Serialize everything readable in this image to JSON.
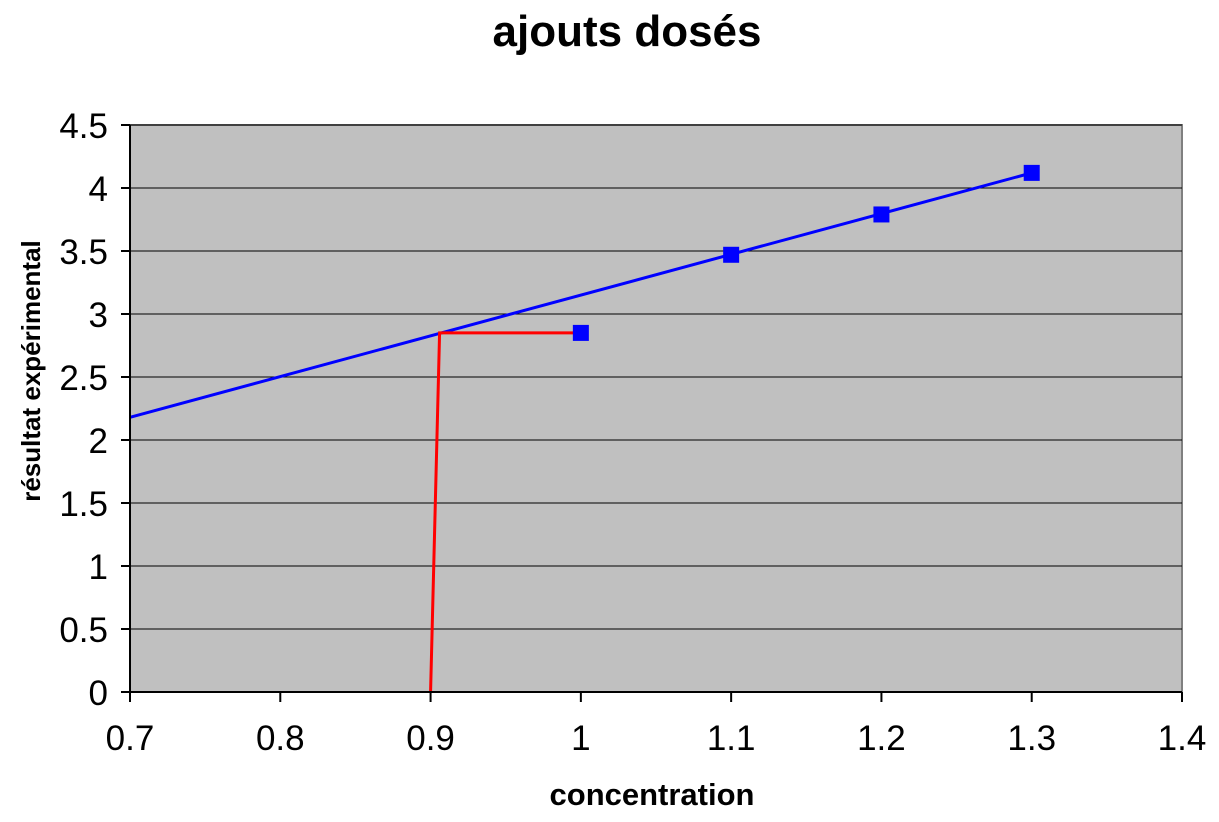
{
  "chart_data": {
    "type": "scatter",
    "title": "ajouts dosés",
    "xlabel": "concentration",
    "ylabel": "résultat expérimental",
    "xlim": [
      0.7,
      1.4
    ],
    "ylim": [
      0,
      4.5
    ],
    "xticks": {
      "values": [
        0.7,
        0.8,
        0.9,
        1.0,
        1.1,
        1.2,
        1.3,
        1.4
      ],
      "labels": [
        "0.7",
        "0.8",
        "0.9",
        "1",
        "1.1",
        "1.2",
        "1.3",
        "1.4"
      ]
    },
    "yticks": {
      "values": [
        0,
        0.5,
        1.0,
        1.5,
        2.0,
        2.5,
        3.0,
        3.5,
        4.0,
        4.5
      ],
      "labels": [
        "0",
        "0.5",
        "1",
        "1.5",
        "2",
        "2.5",
        "3",
        "3.5",
        "4",
        "4.5"
      ]
    },
    "grid": "horizontal-major-only",
    "legend": "none",
    "colors": {
      "plot_background": "#c0c0c0",
      "plot_border": "#808080",
      "gridline": "#000000",
      "axis": "#000000",
      "series_blue": "#0000ff",
      "annotation_red": "#ff0000"
    },
    "series": [
      {
        "name": "trendline",
        "kind": "line",
        "color": "#0000ff",
        "width": 3,
        "points": [
          [
            0.7,
            2.18
          ],
          [
            1.3,
            4.12
          ]
        ]
      },
      {
        "name": "graphical-reading-annotation",
        "kind": "line",
        "color": "#ff0000",
        "width": 3,
        "points": [
          [
            1.0,
            2.85
          ],
          [
            0.906,
            2.85
          ],
          [
            0.9,
            0
          ]
        ]
      },
      {
        "name": "experimental-points",
        "kind": "scatter",
        "marker": "square",
        "marker_size": 16,
        "color": "#0000ff",
        "points": [
          [
            1.0,
            2.85
          ],
          [
            1.1,
            3.47
          ],
          [
            1.2,
            3.79
          ],
          [
            1.3,
            4.12
          ]
        ]
      }
    ]
  }
}
